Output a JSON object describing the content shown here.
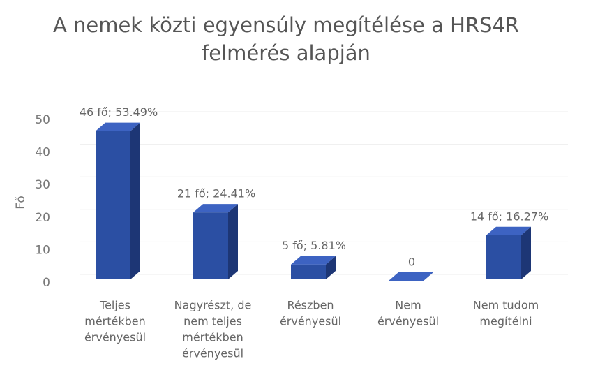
{
  "chart_data": {
    "type": "bar3d",
    "title": [
      "A nemek közti egyensúly megítélése a HRS4R",
      "felmérés alapján"
    ],
    "ylabel": "Fő",
    "categories": [
      [
        "Teljes",
        "mértékben",
        "érvényesül"
      ],
      [
        "Nagyrészt, de",
        "nem teljes",
        "mértékben",
        "érvényesül"
      ],
      [
        "Részben",
        "érvényesül"
      ],
      [
        "Nem",
        "érvényesül"
      ],
      [
        "Nem tudom",
        "megítélni"
      ]
    ],
    "values": [
      46,
      21,
      5,
      0,
      14
    ],
    "value_labels": [
      "46 fő; 53.49%",
      "21 fő; 24.41%",
      "5 fő; 5.81%",
      "0",
      "14 fő; 16.27%"
    ],
    "color": "#2b4fa3",
    "ylim": [
      0,
      50
    ],
    "yticks": [
      0,
      10,
      20,
      30,
      40,
      50
    ],
    "grid": true
  }
}
